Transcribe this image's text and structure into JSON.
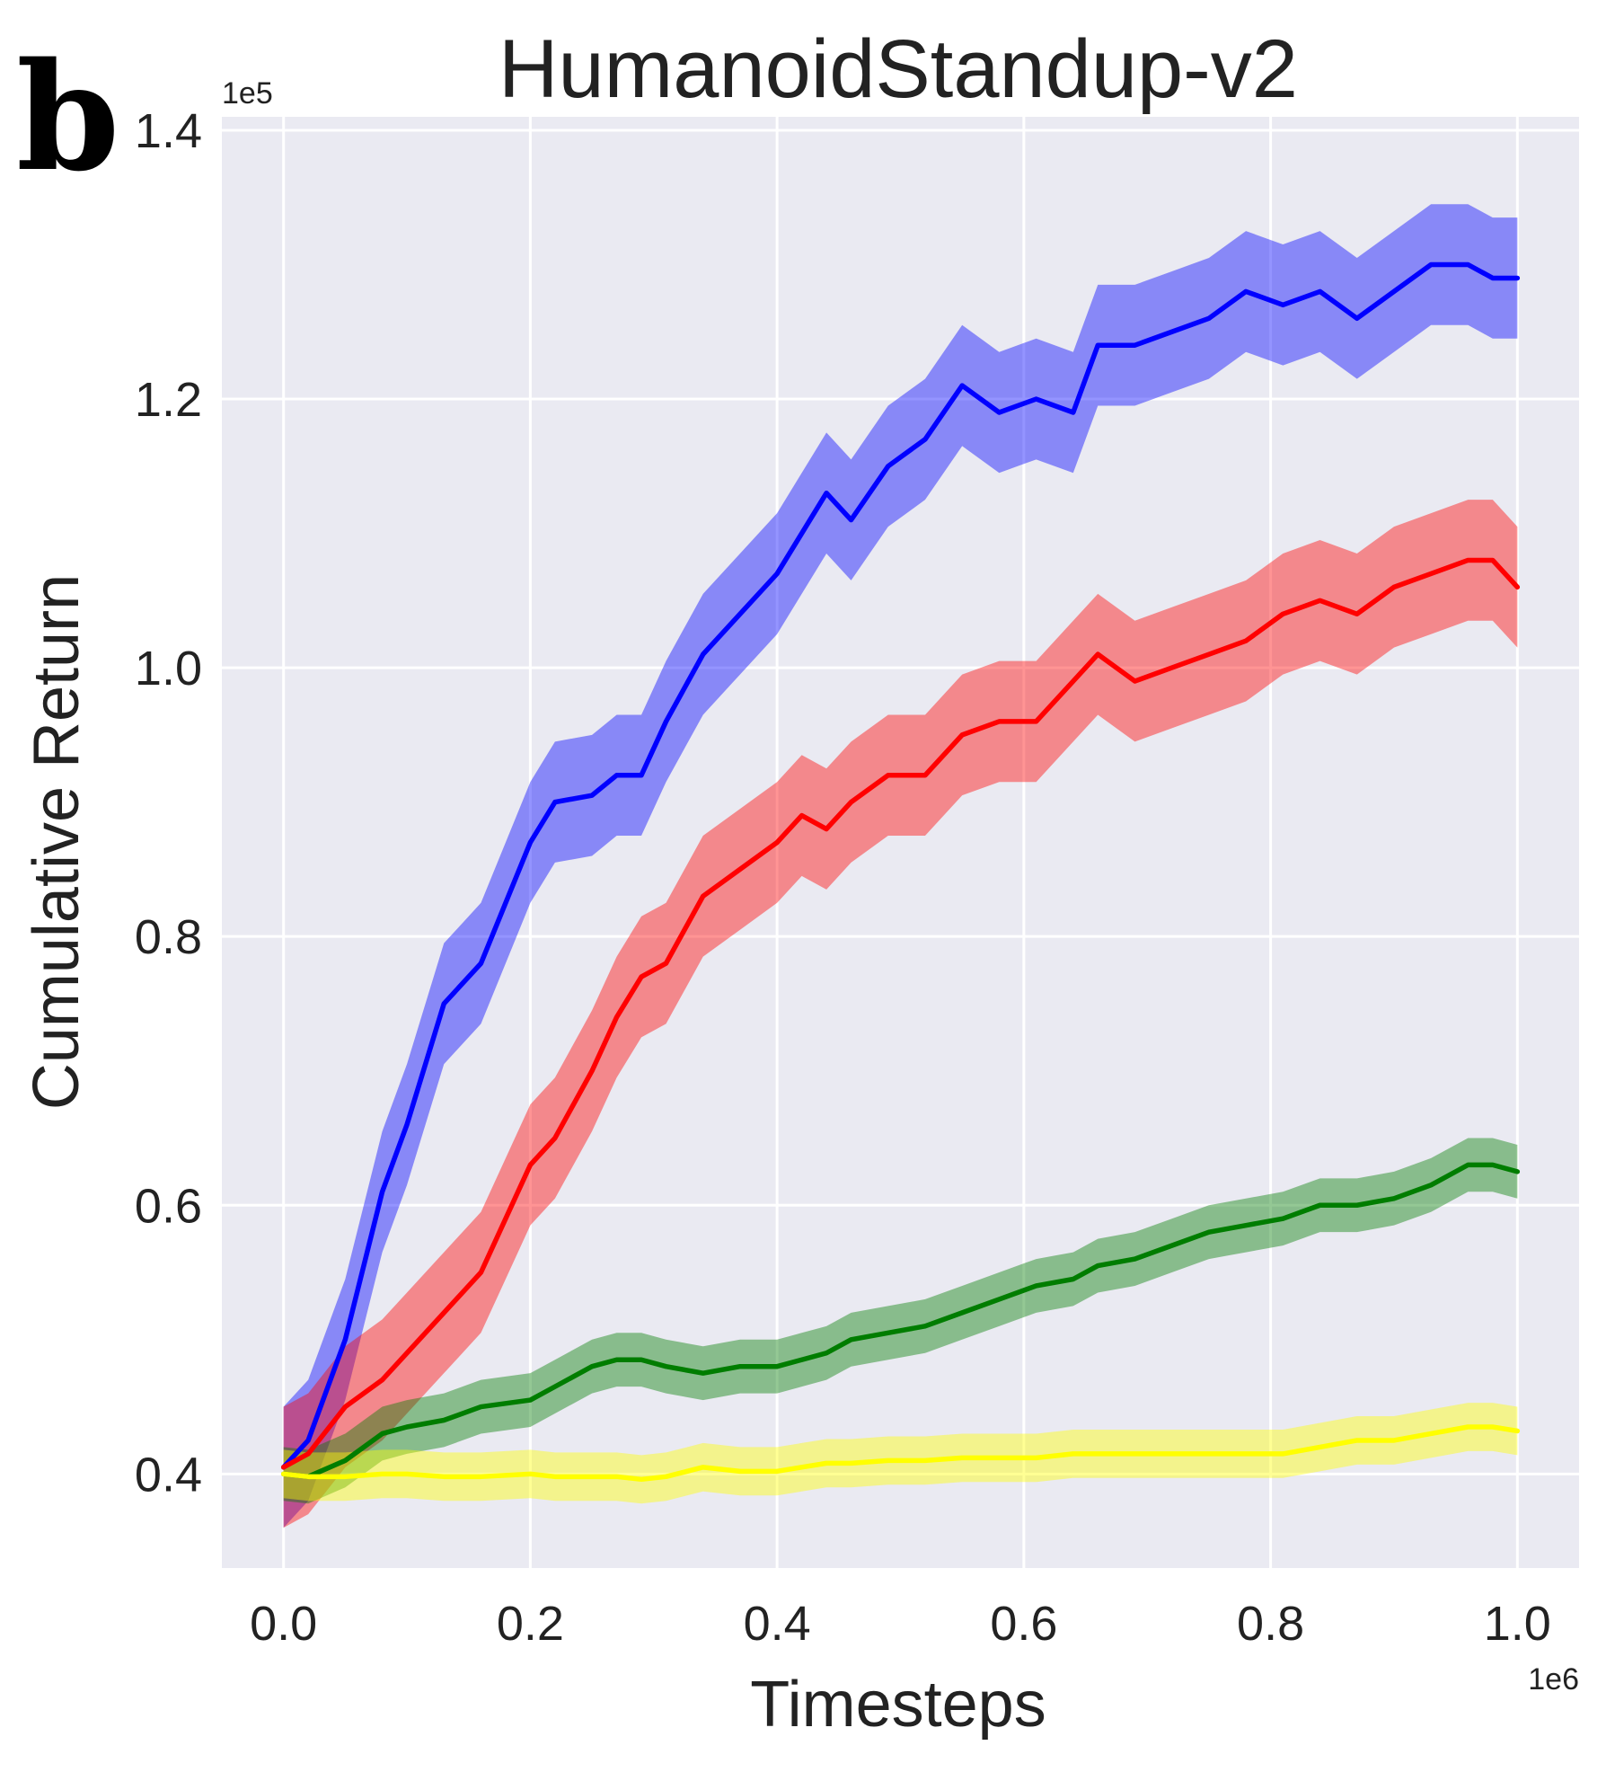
{
  "panel_label": "b",
  "chart_data": {
    "type": "line",
    "title": "HumanoidStandup-v2",
    "xlabel": "Timesteps",
    "ylabel": "Cumulative Return",
    "x_offset_label": "1e6",
    "y_offset_label": "1e5",
    "xlim": [
      -0.05,
      1.05
    ],
    "ylim": [
      0.33,
      1.41
    ],
    "xticks": [
      0.0,
      0.2,
      0.4,
      0.6,
      0.8,
      1.0
    ],
    "xtick_labels": [
      "0.0",
      "0.2",
      "0.4",
      "0.6",
      "0.8",
      "1.0"
    ],
    "yticks": [
      0.4,
      0.6,
      0.8,
      1.0,
      1.2,
      1.4
    ],
    "ytick_labels": [
      "0.4",
      "0.6",
      "0.8",
      "1.0",
      "1.2",
      "1.4"
    ],
    "grid": true,
    "background": "#eaeaf2",
    "x": [
      0.0,
      0.02,
      0.05,
      0.08,
      0.1,
      0.13,
      0.16,
      0.2,
      0.22,
      0.25,
      0.27,
      0.29,
      0.31,
      0.34,
      0.37,
      0.4,
      0.42,
      0.44,
      0.46,
      0.49,
      0.52,
      0.55,
      0.58,
      0.61,
      0.64,
      0.66,
      0.69,
      0.72,
      0.75,
      0.78,
      0.81,
      0.84,
      0.87,
      0.9,
      0.93,
      0.96,
      0.98,
      1.0
    ],
    "series": [
      {
        "name": "blue",
        "color": "#0000ff",
        "values": [
          0.405,
          0.425,
          0.5,
          0.61,
          0.66,
          0.75,
          0.78,
          0.87,
          0.9,
          0.905,
          0.92,
          0.92,
          0.96,
          1.01,
          1.04,
          1.07,
          1.1,
          1.13,
          1.11,
          1.15,
          1.17,
          1.21,
          1.19,
          1.2,
          1.19,
          1.24,
          1.24,
          1.25,
          1.26,
          1.28,
          1.27,
          1.28,
          1.26,
          1.28,
          1.3,
          1.3,
          1.29,
          1.29
        ],
        "band": 0.045
      },
      {
        "name": "red",
        "color": "#ff0000",
        "values": [
          0.405,
          0.415,
          0.45,
          0.47,
          0.49,
          0.52,
          0.55,
          0.63,
          0.65,
          0.7,
          0.74,
          0.77,
          0.78,
          0.83,
          0.85,
          0.87,
          0.89,
          0.88,
          0.9,
          0.92,
          0.92,
          0.95,
          0.96,
          0.96,
          0.99,
          1.01,
          0.99,
          1.0,
          1.01,
          1.02,
          1.04,
          1.05,
          1.04,
          1.06,
          1.07,
          1.08,
          1.08,
          1.06
        ],
        "band": 0.045
      },
      {
        "name": "green",
        "color": "#007d00",
        "values": [
          0.4,
          0.398,
          0.41,
          0.43,
          0.435,
          0.44,
          0.45,
          0.455,
          0.465,
          0.48,
          0.485,
          0.485,
          0.48,
          0.475,
          0.48,
          0.48,
          0.485,
          0.49,
          0.5,
          0.505,
          0.51,
          0.52,
          0.53,
          0.54,
          0.545,
          0.555,
          0.56,
          0.57,
          0.58,
          0.585,
          0.59,
          0.6,
          0.6,
          0.605,
          0.615,
          0.63,
          0.63,
          0.625
        ],
        "band": 0.02
      },
      {
        "name": "yellow",
        "color": "#ffff00",
        "values": [
          0.4,
          0.398,
          0.398,
          0.4,
          0.4,
          0.398,
          0.398,
          0.4,
          0.398,
          0.398,
          0.398,
          0.396,
          0.398,
          0.405,
          0.402,
          0.402,
          0.405,
          0.408,
          0.408,
          0.41,
          0.41,
          0.412,
          0.412,
          0.412,
          0.415,
          0.415,
          0.415,
          0.415,
          0.415,
          0.415,
          0.415,
          0.42,
          0.425,
          0.425,
          0.43,
          0.435,
          0.435,
          0.432
        ],
        "band": 0.018
      }
    ]
  }
}
